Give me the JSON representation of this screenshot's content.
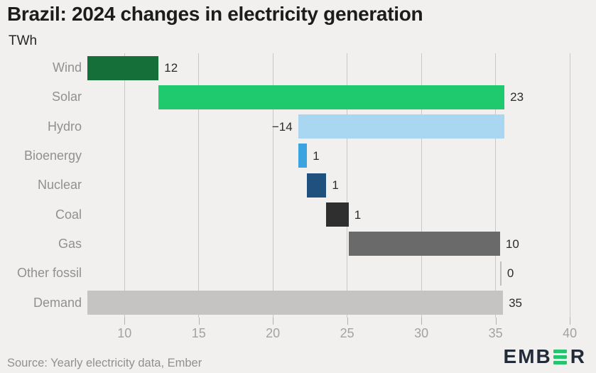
{
  "title": "Brazil: 2024 changes in electricity generation",
  "subtitle": "TWh",
  "footer": {
    "source": "Source: Yearly electricity data, Ember"
  },
  "logo": {
    "prefix": "EMB",
    "suffix": "R",
    "bar_color": "#27c46f",
    "text_color": "#232a38"
  },
  "colors": {
    "background": "#f1f0ee",
    "grid": "#c9c8c6",
    "tick": "#b2b1af",
    "axis_label": "#a3a2a0",
    "category_label": "#919090",
    "value_label": "#2b2b2b"
  },
  "chart_data": {
    "type": "bar",
    "subtype": "horizontal-waterfall",
    "title": "Brazil: 2024 changes in electricity generation",
    "unit": "TWh",
    "xlabel": "TWh",
    "ylabel": "",
    "xlim": [
      7.5,
      41
    ],
    "xticks": [
      10,
      15,
      20,
      25,
      30,
      35,
      40
    ],
    "grid": true,
    "legend": false,
    "categories": [
      "Wind",
      "Solar",
      "Hydro",
      "Bioenergy",
      "Nuclear",
      "Coal",
      "Gas",
      "Other fossil",
      "Demand"
    ],
    "values": [
      12,
      23,
      -14,
      1,
      1,
      1,
      10,
      0,
      35
    ],
    "bars": [
      {
        "category": "Wind",
        "value": 12,
        "label": "12",
        "start": 7.5,
        "end": 12.3,
        "color": "#156f39",
        "label_side": "right"
      },
      {
        "category": "Solar",
        "value": 23,
        "label": "23",
        "start": 12.3,
        "end": 35.6,
        "color": "#1fc96e",
        "label_side": "right"
      },
      {
        "category": "Hydro",
        "value": -14,
        "label": "−14",
        "start": 21.7,
        "end": 35.6,
        "color": "#a9d7f2",
        "label_side": "left"
      },
      {
        "category": "Bioenergy",
        "value": 1,
        "label": "1",
        "start": 21.7,
        "end": 22.3,
        "color": "#3aa3e0",
        "label_side": "right"
      },
      {
        "category": "Nuclear",
        "value": 1,
        "label": "1",
        "start": 22.3,
        "end": 23.6,
        "color": "#20517e",
        "label_side": "right"
      },
      {
        "category": "Coal",
        "value": 1,
        "label": "1",
        "start": 23.6,
        "end": 25.1,
        "color": "#2f2f2f",
        "label_side": "right"
      },
      {
        "category": "Gas",
        "value": 10,
        "label": "10",
        "start": 25.1,
        "end": 35.3,
        "color": "#6a6a6a",
        "label_side": "right"
      },
      {
        "category": "Other fossil",
        "value": 0,
        "label": "0",
        "start": 35.3,
        "end": 35.3,
        "color": "#c0bfbd",
        "label_side": "right"
      },
      {
        "category": "Demand",
        "value": 35,
        "label": "35",
        "start": 7.5,
        "end": 35.5,
        "color": "#c5c4c2",
        "label_side": "right"
      }
    ]
  }
}
